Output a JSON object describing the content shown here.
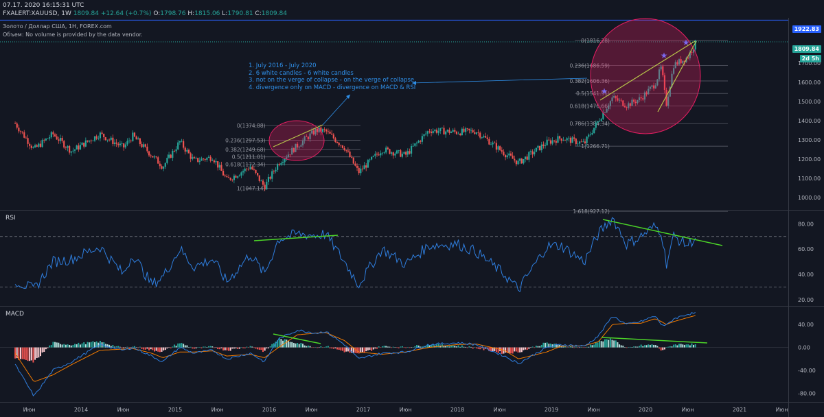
{
  "header": {
    "datetime": "07.17. 2020 16:15:31 UTC",
    "author": "FXALERT",
    "symbol": ":XAUUSD",
    "interval": "1W",
    "last": "1809.84",
    "change": "+12.64 (+0.7%)",
    "o_label": "O:",
    "o": "1798.76",
    "h_label": "H:",
    "h": "1815.06",
    "l_label": "L:",
    "l": "1790.81",
    "c_label": "C:",
    "c": "1809.84",
    "instrument": "Золото / Доллар США, 1H, FOREX.com",
    "volume_note": "Объем: No volume is provided by the data vendor."
  },
  "annotation": {
    "line1": "1.  July 2016 - July 2020",
    "line2": "2.  6 white candles - 6 white candles",
    "line3": "3.  not on the verge of collapse - on the verge of collapse",
    "line4": "4. divergence only on MACD - divergence on MACD &  RSI"
  },
  "tags": {
    "high_line": "1922.83",
    "last_price": "1809.84",
    "countdown": "2d 5h"
  },
  "colors": {
    "background": "#131722",
    "up": "#26a69a",
    "down": "#ef5350",
    "rsi": "#2f7fe0",
    "macd": "#2f7fe0",
    "signal": "#f57c00",
    "trendline": "#4cd428",
    "circle_fill": "#e91e63",
    "annotation": "#2f8fe8"
  },
  "chart_data": [
    {
      "type": "candlestick",
      "title": "XAUUSD 1W",
      "x_tick_labels": [
        "Июн",
        "2014",
        "Июн",
        "2015",
        "Июн",
        "2016",
        "Июн",
        "2017",
        "Июн",
        "2018",
        "Июн",
        "2019",
        "Июн",
        "2020",
        "Июн",
        "2021",
        "Июн"
      ],
      "y_ticks": [
        1000,
        1100,
        1200,
        1300,
        1400,
        1500,
        1600,
        1700
      ],
      "ylim": [
        935,
        1935
      ],
      "close_path": [
        [
          2013.3,
          1385
        ],
        [
          2013.5,
          1250
        ],
        [
          2013.7,
          1330
        ],
        [
          2013.9,
          1240
        ],
        [
          2014.2,
          1330
        ],
        [
          2014.45,
          1260
        ],
        [
          2014.55,
          1320
        ],
        [
          2014.75,
          1220
        ],
        [
          2014.87,
          1160
        ],
        [
          2015.05,
          1290
        ],
        [
          2015.2,
          1190
        ],
        [
          2015.4,
          1210
        ],
        [
          2015.55,
          1090
        ],
        [
          2015.8,
          1160
        ],
        [
          2015.95,
          1055
        ],
        [
          2016.1,
          1180
        ],
        [
          2016.3,
          1270
        ],
        [
          2016.5,
          1350
        ],
        [
          2016.6,
          1345
        ],
        [
          2016.8,
          1260
        ],
        [
          2016.95,
          1130
        ],
        [
          2017.2,
          1250
        ],
        [
          2017.45,
          1220
        ],
        [
          2017.7,
          1350
        ],
        [
          2018.0,
          1340
        ],
        [
          2018.2,
          1345
        ],
        [
          2018.5,
          1230
        ],
        [
          2018.65,
          1180
        ],
        [
          2018.95,
          1285
        ],
        [
          2019.1,
          1310
        ],
        [
          2019.35,
          1280
        ],
        [
          2019.5,
          1400
        ],
        [
          2019.65,
          1520
        ],
        [
          2019.8,
          1480
        ],
        [
          2019.95,
          1515
        ],
        [
          2020.1,
          1590
        ],
        [
          2020.17,
          1680
        ],
        [
          2020.22,
          1480
        ],
        [
          2020.3,
          1690
        ],
        [
          2020.45,
          1730
        ],
        [
          2020.54,
          1809.84
        ]
      ],
      "fib_left": {
        "levels": [
          {
            "label": "0(1374.88)",
            "value": 1374.88
          },
          {
            "label": "0.236(1297.53)",
            "value": 1297.53
          },
          {
            "label": "0.382(1249.68)",
            "value": 1249.68
          },
          {
            "label": "0.5(1211.01)",
            "value": 1211.01
          },
          {
            "label": "0.618(1172.34)",
            "value": 1172.34
          },
          {
            "label": "1(1047.14)",
            "value": 1047.14
          }
        ]
      },
      "fib_right": {
        "levels": [
          {
            "label": "0(1816.28)",
            "value": 1816.28
          },
          {
            "label": "0.236(1686.59)",
            "value": 1686.59
          },
          {
            "label": "0.382(1606.36)",
            "value": 1606.36
          },
          {
            "label": "0.5(1541.51)",
            "value": 1541.51
          },
          {
            "label": "0.618(1476.66)",
            "value": 1476.66
          },
          {
            "label": "0.786(1384.34)",
            "value": 1384.34
          },
          {
            "label": "1(1266.71)",
            "value": 1266.71
          },
          {
            "label": "1.618(927.12)",
            "value": 927.12
          }
        ]
      },
      "horizontal_lines": [
        1922.83,
        1809.84
      ]
    },
    {
      "type": "line",
      "title": "RSI",
      "y_ticks": [
        20,
        40,
        60,
        80
      ],
      "ylim": [
        15,
        90
      ],
      "bands": [
        30,
        70
      ],
      "path": [
        [
          2013.3,
          35
        ],
        [
          2013.5,
          28
        ],
        [
          2013.7,
          50
        ],
        [
          2013.9,
          52
        ],
        [
          2014.2,
          62
        ],
        [
          2014.45,
          40
        ],
        [
          2014.55,
          56
        ],
        [
          2014.75,
          32
        ],
        [
          2014.87,
          38
        ],
        [
          2015.05,
          60
        ],
        [
          2015.2,
          46
        ],
        [
          2015.4,
          52
        ],
        [
          2015.55,
          34
        ],
        [
          2015.8,
          56
        ],
        [
          2015.95,
          40
        ],
        [
          2016.1,
          68
        ],
        [
          2016.3,
          72
        ],
        [
          2016.5,
          71
        ],
        [
          2016.6,
          72
        ],
        [
          2016.8,
          50
        ],
        [
          2016.95,
          32
        ],
        [
          2017.2,
          60
        ],
        [
          2017.45,
          48
        ],
        [
          2017.7,
          63
        ],
        [
          2018.0,
          64
        ],
        [
          2018.2,
          58
        ],
        [
          2018.5,
          40
        ],
        [
          2018.65,
          28
        ],
        [
          2018.95,
          62
        ],
        [
          2019.1,
          63
        ],
        [
          2019.35,
          50
        ],
        [
          2019.5,
          72
        ],
        [
          2019.65,
          85
        ],
        [
          2019.8,
          64
        ],
        [
          2019.95,
          70
        ],
        [
          2020.1,
          78
        ],
        [
          2020.17,
          74
        ],
        [
          2020.22,
          48
        ],
        [
          2020.3,
          70
        ],
        [
          2020.45,
          63
        ],
        [
          2020.54,
          70
        ]
      ]
    },
    {
      "type": "bar",
      "title": "MACD",
      "y_ticks": [
        -80,
        -40,
        0,
        40
      ],
      "ylim": [
        -95,
        70
      ],
      "macd_path": [
        [
          2013.3,
          -30
        ],
        [
          2013.5,
          -85
        ],
        [
          2013.7,
          -40
        ],
        [
          2013.9,
          -25
        ],
        [
          2014.2,
          5
        ],
        [
          2014.45,
          -5
        ],
        [
          2014.55,
          0
        ],
        [
          2014.75,
          -15
        ],
        [
          2014.87,
          -25
        ],
        [
          2015.05,
          0
        ],
        [
          2015.2,
          -10
        ],
        [
          2015.4,
          -5
        ],
        [
          2015.55,
          -20
        ],
        [
          2015.8,
          -10
        ],
        [
          2015.95,
          -25
        ],
        [
          2016.1,
          15
        ],
        [
          2016.3,
          30
        ],
        [
          2016.5,
          25
        ],
        [
          2016.6,
          28
        ],
        [
          2016.8,
          5
        ],
        [
          2016.95,
          -20
        ],
        [
          2017.2,
          -10
        ],
        [
          2017.45,
          -8
        ],
        [
          2017.7,
          5
        ],
        [
          2018.0,
          8
        ],
        [
          2018.2,
          5
        ],
        [
          2018.5,
          -15
        ],
        [
          2018.65,
          -28
        ],
        [
          2018.95,
          0
        ],
        [
          2019.1,
          5
        ],
        [
          2019.35,
          2
        ],
        [
          2019.5,
          20
        ],
        [
          2019.65,
          55
        ],
        [
          2019.8,
          40
        ],
        [
          2019.95,
          45
        ],
        [
          2020.1,
          55
        ],
        [
          2020.17,
          40
        ],
        [
          2020.22,
          38
        ],
        [
          2020.3,
          50
        ],
        [
          2020.45,
          58
        ],
        [
          2020.54,
          60
        ]
      ],
      "signal_path": [
        [
          2013.3,
          -10
        ],
        [
          2013.5,
          -60
        ],
        [
          2013.7,
          -48
        ],
        [
          2013.9,
          -30
        ],
        [
          2014.2,
          -5
        ],
        [
          2014.45,
          -3
        ],
        [
          2014.55,
          -2
        ],
        [
          2014.75,
          -10
        ],
        [
          2014.87,
          -18
        ],
        [
          2015.05,
          -8
        ],
        [
          2015.2,
          -8
        ],
        [
          2015.4,
          -6
        ],
        [
          2015.55,
          -15
        ],
        [
          2015.8,
          -12
        ],
        [
          2015.95,
          -18
        ],
        [
          2016.1,
          0
        ],
        [
          2016.3,
          22
        ],
        [
          2016.5,
          25
        ],
        [
          2016.6,
          26
        ],
        [
          2016.8,
          12
        ],
        [
          2016.95,
          -8
        ],
        [
          2017.2,
          -12
        ],
        [
          2017.45,
          -8
        ],
        [
          2017.7,
          0
        ],
        [
          2018.0,
          5
        ],
        [
          2018.2,
          6
        ],
        [
          2018.5,
          -5
        ],
        [
          2018.65,
          -20
        ],
        [
          2018.95,
          -8
        ],
        [
          2019.1,
          2
        ],
        [
          2019.35,
          3
        ],
        [
          2019.5,
          10
        ],
        [
          2019.65,
          40
        ],
        [
          2019.8,
          42
        ],
        [
          2019.95,
          42
        ],
        [
          2020.1,
          50
        ],
        [
          2020.17,
          45
        ],
        [
          2020.22,
          40
        ],
        [
          2020.3,
          45
        ],
        [
          2020.45,
          52
        ],
        [
          2020.54,
          56
        ]
      ]
    }
  ]
}
